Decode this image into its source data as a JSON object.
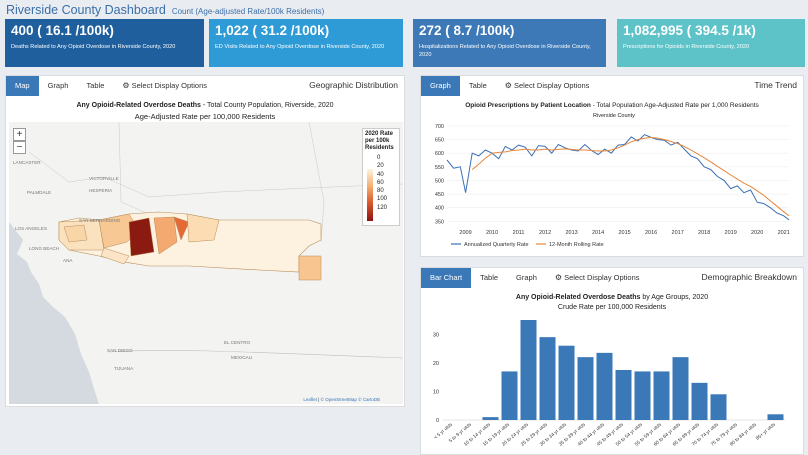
{
  "header": {
    "title": "Riverside County Dashboard",
    "subtitle": "Count (Age-adjusted Rate/100k Residents)"
  },
  "cards": [
    {
      "value": "400 ( 16.1 /100k)",
      "label": "Deaths Related to Any Opioid Overdose in Riverside County, 2020",
      "color": "#1f5f9e"
    },
    {
      "value": "1,022 ( 31.2 /100k)",
      "label": "ED Visits Related to Any Opioid Overdose in Riverside County, 2020",
      "color": "#2e9ad6"
    },
    {
      "value": "272 ( 8.7 /100k)",
      "label": "Hospitalizations Related to Any Opioid Overdose in Riverside County, 2020",
      "color": "#3d79b6"
    },
    {
      "value": "1,082,995 ( 394.5 /1k)",
      "label": "Prescriptions for Opioids in Riverside County, 2020",
      "color": "#5ec3c8"
    }
  ],
  "map_panel": {
    "tabs": [
      "Map",
      "Graph",
      "Table",
      "Select Display Options"
    ],
    "panel_title": "Geographic Distribution",
    "chart_title_bold": "Any Opioid-Related Overdose Deaths",
    "chart_title_rest": " - Total County Population, Riverside, 2020",
    "chart_subtitle": "Age-Adjusted Rate per 100,000 Residents",
    "zoom_in": "+",
    "zoom_out": "−",
    "legend_title": "2020 Rate per 100k Residents",
    "legend_values": [
      "0",
      "20",
      "40",
      "60",
      "80",
      "100",
      "120"
    ],
    "place_labels": [
      "LANCASTER",
      "VICTORVILLE",
      "PALMDALE",
      "HESPERIA",
      "SAN BERNARDINO",
      "LOS ANGELES",
      "LONG BEACH",
      "SAN DIEGO",
      "EL CENTRO",
      "MEXICALI",
      "TIJUANA",
      "ANA"
    ],
    "attribution_leaflet": "Leaflet",
    "attribution_osm": "© OpenStreetMap © CartoDB"
  },
  "trend_panel": {
    "tabs": [
      "Graph",
      "Table",
      "Select Display Options"
    ],
    "panel_title": "Time Trend",
    "chart_title_bold": "Opioid Prescriptions by Patient Location",
    "chart_title_rest": " - Total Population Age-Adjusted Rate per 1,000 Residents",
    "region_label": "Riverside County"
  },
  "demo_panel": {
    "tabs": [
      "Bar Chart",
      "Table",
      "Graph",
      "Select Display Options"
    ],
    "panel_title": "Demographic Breakdown",
    "chart_title_bold": "Any Opioid-Related Overdose Deaths",
    "chart_title_rest": " by Age Groups, 2020",
    "chart_subtitle": "Crude Rate per 100,000 Residents"
  },
  "chart_data": [
    {
      "type": "line",
      "title": "Opioid Prescriptions by Patient Location - Total Population Age-Adjusted Rate per 1,000 Residents",
      "x_ticks": [
        "2009",
        "2010",
        "2011",
        "2012",
        "2013",
        "2014",
        "2015",
        "2016",
        "2017",
        "2018",
        "2019",
        "2020",
        "2021"
      ],
      "xlim": [
        2008.3,
        2021.2
      ],
      "ylim": [
        340,
        700
      ],
      "y_ticks": [
        350,
        400,
        450,
        500,
        550,
        600,
        650,
        700
      ],
      "series": [
        {
          "name": "Annualized Quarterly Rate",
          "color": "#3b6fb5",
          "x": [
            2008.3,
            2008.55,
            2008.8,
            2009.0,
            2009.25,
            2009.5,
            2009.75,
            2010.0,
            2010.25,
            2010.5,
            2010.75,
            2011.0,
            2011.25,
            2011.5,
            2011.75,
            2012.0,
            2012.25,
            2012.5,
            2012.75,
            2013.0,
            2013.25,
            2013.5,
            2013.75,
            2014.0,
            2014.25,
            2014.5,
            2014.75,
            2015.0,
            2015.25,
            2015.5,
            2015.75,
            2016.0,
            2016.25,
            2016.5,
            2016.75,
            2017.0,
            2017.25,
            2017.5,
            2017.75,
            2018.0,
            2018.25,
            2018.5,
            2018.75,
            2019.0,
            2019.25,
            2019.5,
            2019.75,
            2020.0,
            2020.25,
            2020.5,
            2020.75,
            2021.0,
            2021.2
          ],
          "y": [
            575,
            545,
            550,
            455,
            600,
            590,
            612,
            600,
            580,
            625,
            612,
            630,
            622,
            590,
            628,
            625,
            600,
            632,
            620,
            612,
            608,
            632,
            610,
            595,
            615,
            600,
            630,
            632,
            660,
            645,
            668,
            658,
            650,
            648,
            630,
            640,
            615,
            590,
            580,
            550,
            540,
            515,
            500,
            470,
            480,
            455,
            465,
            420,
            415,
            400,
            380,
            370,
            355
          ]
        },
        {
          "name": "12-Month Rolling Rate",
          "color": "#e8853a",
          "x": [
            2009.25,
            2009.5,
            2009.75,
            2010.0,
            2010.25,
            2010.5,
            2010.75,
            2011.0,
            2011.25,
            2011.5,
            2011.75,
            2012.0,
            2012.25,
            2012.5,
            2012.75,
            2013.0,
            2013.25,
            2013.5,
            2013.75,
            2014.0,
            2014.25,
            2014.5,
            2014.75,
            2015.0,
            2015.25,
            2015.5,
            2015.75,
            2016.0,
            2016.25,
            2016.5,
            2016.75,
            2017.0,
            2017.25,
            2017.5,
            2017.75,
            2018.0,
            2018.25,
            2018.5,
            2018.75,
            2019.0,
            2019.25,
            2019.5,
            2019.75,
            2020.0,
            2020.25,
            2020.5,
            2020.75,
            2021.0,
            2021.2
          ],
          "y": [
            540,
            560,
            582,
            600,
            603,
            605,
            610,
            612,
            615,
            612,
            612,
            615,
            612,
            614,
            616,
            614,
            612,
            612,
            610,
            608,
            608,
            612,
            620,
            630,
            642,
            650,
            655,
            658,
            655,
            650,
            643,
            635,
            625,
            612,
            598,
            583,
            568,
            552,
            536,
            520,
            505,
            490,
            478,
            462,
            445,
            425,
            405,
            385,
            370
          ]
        }
      ]
    },
    {
      "type": "bar",
      "title": "Any Opioid-Related Overdose Deaths by Age Groups, 2020",
      "ylabel": "Crude Rate per 100,000 Residents",
      "categories": [
        "< 5 yr olds",
        "5 to 9 yr olds",
        "10 to 14 yr olds",
        "15 to 19 yr olds",
        "20 to 24 yr olds",
        "25 to 29 yr olds",
        "30 to 34 yr olds",
        "35 to 39 yr olds",
        "40 to 44 yr olds",
        "45 to 49 yr olds",
        "50 to 54 yr olds",
        "55 to 59 yr olds",
        "60 to 64 yr olds",
        "65 to 69 yr olds",
        "70 to 74 yr olds",
        "75 to 79 yr olds",
        "80 to 84 yr olds",
        "85+ yr olds"
      ],
      "values": [
        0,
        0,
        1,
        17,
        35,
        29,
        26,
        22,
        23.5,
        17.5,
        17,
        17,
        22,
        13,
        9,
        0,
        0,
        2
      ],
      "ylim": [
        0,
        35
      ],
      "y_ticks": [
        0,
        10,
        20,
        30
      ],
      "color": "#3a78b8"
    }
  ]
}
